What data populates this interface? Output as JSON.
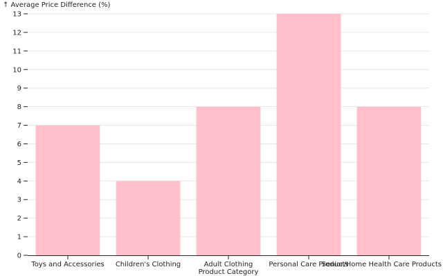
{
  "chart_data": {
    "type": "bar",
    "categories": [
      "Toys and Accessories",
      "Children's Clothing",
      "Adult Clothing",
      "Personal Care Products",
      "Senior/Home Health Care Products"
    ],
    "values": [
      7,
      4,
      8,
      13,
      8
    ],
    "title": "",
    "xlabel": "Product Category",
    "ylabel": "↑ Average Price Difference (%)",
    "ylim": [
      0,
      13
    ],
    "yticks": [
      0,
      1,
      2,
      3,
      4,
      5,
      6,
      7,
      8,
      9,
      10,
      11,
      12,
      13
    ],
    "grid": true,
    "bar_color": "#ffc0cb"
  }
}
